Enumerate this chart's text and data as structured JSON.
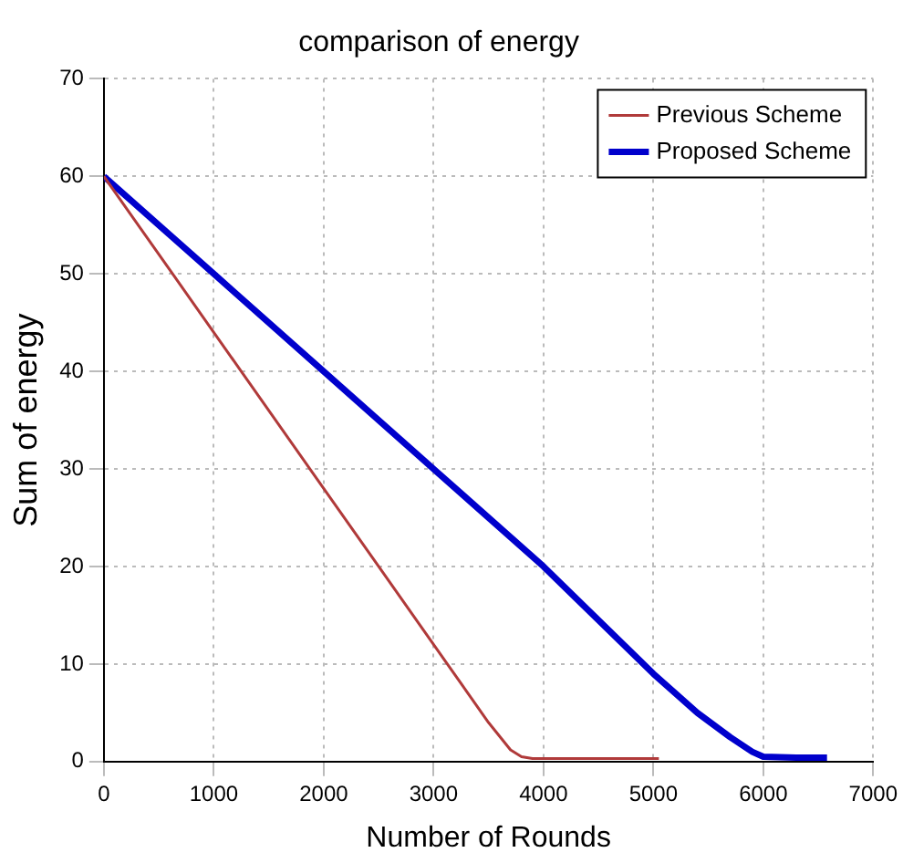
{
  "chart_data": {
    "type": "line",
    "title": "comparison of energy",
    "xlabel": "Number of Rounds",
    "ylabel": "Sum of energy",
    "xlim": [
      0,
      7000
    ],
    "xticks": [
      0,
      1000,
      2000,
      3000,
      4000,
      5000,
      6000,
      7000
    ],
    "ylim": [
      0,
      70
    ],
    "yticks": [
      0,
      10,
      20,
      30,
      40,
      50,
      60,
      70
    ],
    "grid": true,
    "legend": "top right",
    "marker": "none",
    "series": [
      {
        "name": "Previous Scheme",
        "color": "#b03a3a",
        "x": [
          0,
          625,
          1250,
          1875,
          2500,
          3125,
          3500,
          3700,
          3800,
          3900,
          4500,
          5050
        ],
        "values": [
          60,
          50,
          40,
          30,
          20,
          10,
          4,
          1.2,
          0.5,
          0.3,
          0.3,
          0.3
        ]
      },
      {
        "name": "Proposed Scheme",
        "color": "#0000cc",
        "x": [
          0,
          1000,
          2000,
          3000,
          4000,
          5000,
          5400,
          5700,
          5900,
          6000,
          6300,
          6580
        ],
        "values": [
          60,
          50,
          40,
          30,
          20,
          9,
          5,
          2.5,
          1,
          0.5,
          0.4,
          0.4
        ]
      }
    ]
  }
}
